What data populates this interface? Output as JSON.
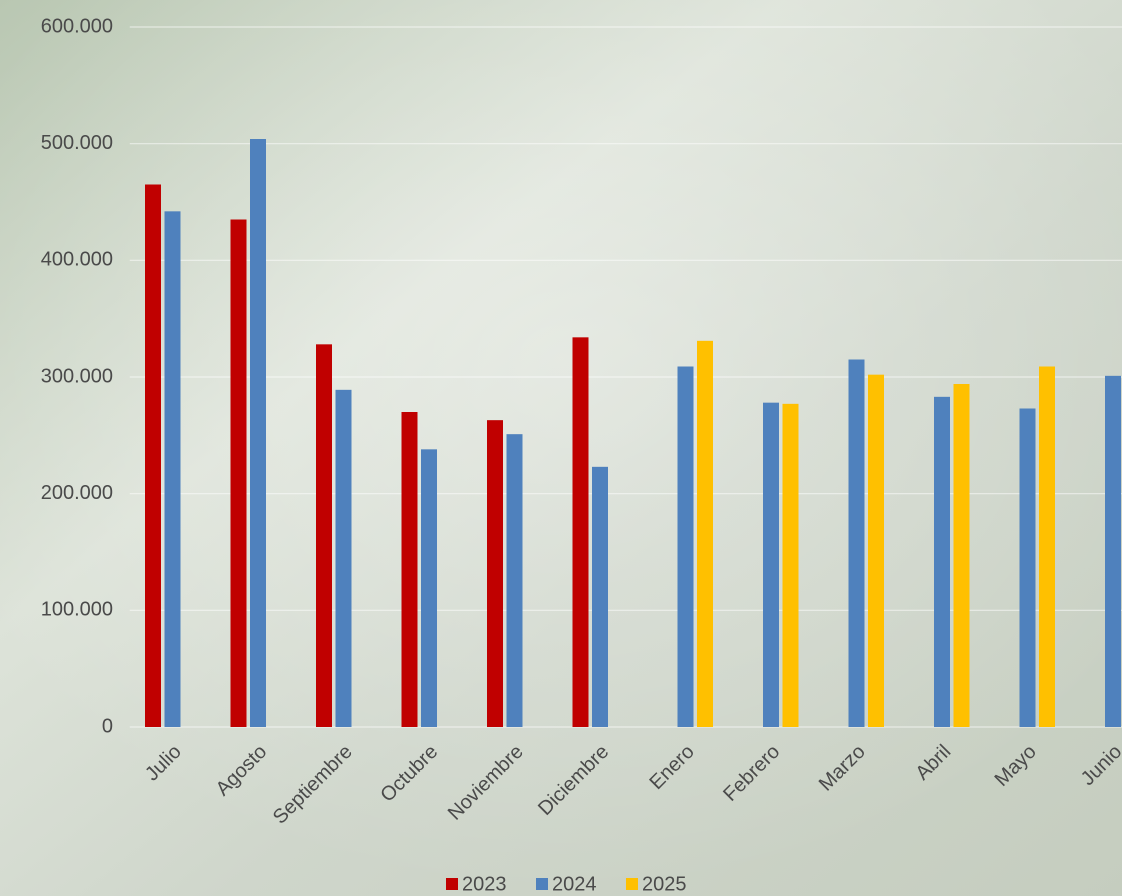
{
  "chart_data": {
    "type": "bar",
    "categories": [
      "Julio",
      "Agosto",
      "Septiembre",
      "Octubre",
      "Noviembre",
      "Diciembre",
      "Enero",
      "Febrero",
      "Marzo",
      "Abril",
      "Mayo",
      "Junio"
    ],
    "series": [
      {
        "name": "2023",
        "color": "#c00000",
        "values": [
          465000,
          435000,
          328000,
          270000,
          263000,
          334000,
          null,
          null,
          null,
          null,
          null,
          null
        ]
      },
      {
        "name": "2024",
        "color": "#4f81bd",
        "values": [
          442000,
          504000,
          289000,
          238000,
          251000,
          223000,
          309000,
          278000,
          315000,
          283000,
          273000,
          301000
        ]
      },
      {
        "name": "2025",
        "color": "#ffc000",
        "values": [
          null,
          null,
          null,
          null,
          null,
          null,
          331000,
          277000,
          302000,
          294000,
          309000,
          null
        ]
      }
    ],
    "ylim": [
      0,
      600000
    ],
    "yticks": [
      {
        "value": 0,
        "label": "0"
      },
      {
        "value": 100000,
        "label": "100.000"
      },
      {
        "value": 200000,
        "label": "200.000"
      },
      {
        "value": 300000,
        "label": "300.000"
      },
      {
        "value": 400000,
        "label": "400.000"
      },
      {
        "value": 500000,
        "label": "500.000"
      },
      {
        "value": 600000,
        "label": "600.000"
      }
    ],
    "grid": true,
    "legend": "bottom"
  }
}
